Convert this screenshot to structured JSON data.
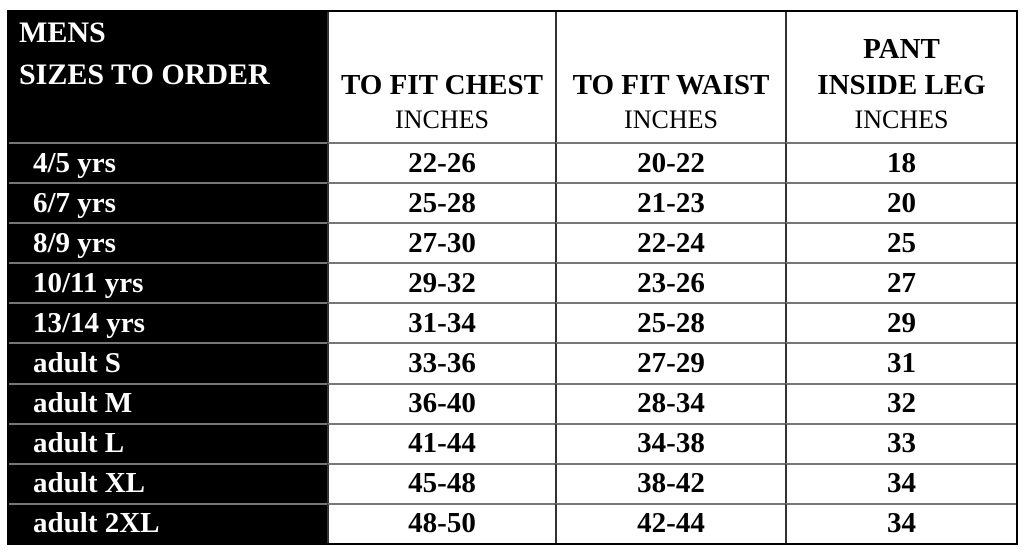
{
  "header": {
    "size_title_line1": "MENS",
    "size_title_line2": "SIZES TO ORDER",
    "columns": [
      {
        "title": "TO FIT CHEST",
        "unit": "INCHES"
      },
      {
        "title": "TO FIT WAIST",
        "unit": "INCHES"
      },
      {
        "title_line1": "PANT",
        "title_line2": "INSIDE LEG",
        "unit": "INCHES"
      }
    ]
  },
  "rows": [
    {
      "size": "4/5 yrs",
      "chest": "22-26",
      "waist": "20-22",
      "leg": "18"
    },
    {
      "size": "6/7 yrs",
      "chest": "25-28",
      "waist": "21-23",
      "leg": "20"
    },
    {
      "size": "8/9 yrs",
      "chest": "27-30",
      "waist": "22-24",
      "leg": "25"
    },
    {
      "size": "10/11 yrs",
      "chest": "29-32",
      "waist": "23-26",
      "leg": "27"
    },
    {
      "size": "13/14 yrs",
      "chest": "31-34",
      "waist": "25-28",
      "leg": "29"
    },
    {
      "size": "adult S",
      "chest": "33-36",
      "waist": "27-29",
      "leg": "31"
    },
    {
      "size": "adult M",
      "chest": "36-40",
      "waist": "28-34",
      "leg": "32"
    },
    {
      "size": "adult L",
      "chest": "41-44",
      "waist": "34-38",
      "leg": "33"
    },
    {
      "size": "adult XL",
      "chest": "45-48",
      "waist": "38-42",
      "leg": "34"
    },
    {
      "size": "adult 2XL",
      "chest": "48-50",
      "waist": "42-44",
      "leg": "34"
    }
  ]
}
